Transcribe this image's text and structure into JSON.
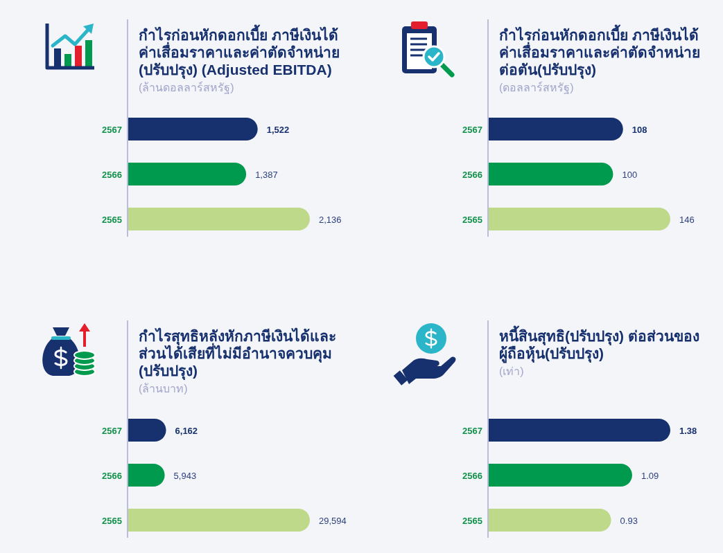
{
  "chart_data": [
    {
      "type": "bar",
      "orientation": "horizontal",
      "title": "กำไรก่อนหักดอกเบี้ย ภาษีเงินได้\nค่าเสื่อมราคาและค่าตัดจำหน่าย\n(ปรับปรุง) (Adjusted EBITDA)",
      "subtitle": "(ล้านดอลลาร์สหรัฐ)",
      "categories": [
        "2567",
        "2566",
        "2565"
      ],
      "values": [
        1522,
        1387,
        2136
      ],
      "value_labels": [
        "1,522",
        "1,387",
        "2,136"
      ],
      "colors": [
        "#17306e",
        "#009a4e",
        "#bfd98a"
      ]
    },
    {
      "type": "bar",
      "orientation": "horizontal",
      "title": "กำไรก่อนหักดอกเบี้ย ภาษีเงินได้\nค่าเสื่อมราคาและค่าตัดจำหน่าย\nต่อตัน(ปรับปรุง)",
      "subtitle": "(ดอลลาร์สหรัฐ)",
      "categories": [
        "2567",
        "2566",
        "2565"
      ],
      "values": [
        108,
        100,
        146
      ],
      "value_labels": [
        "108",
        "100",
        "146"
      ],
      "colors": [
        "#17306e",
        "#009a4e",
        "#bfd98a"
      ]
    },
    {
      "type": "bar",
      "orientation": "horizontal",
      "title": "กำไรสุทธิหลังหักภาษีเงินได้และ\nส่วนได้เสียที่ไม่มีอำนาจควบคุม\n(ปรับปรุง)",
      "subtitle": "(ล้านบาท)",
      "categories": [
        "2567",
        "2566",
        "2565"
      ],
      "values": [
        6162,
        5943,
        29594
      ],
      "value_labels": [
        "6,162",
        "5,943",
        "29,594"
      ],
      "colors": [
        "#17306e",
        "#009a4e",
        "#bfd98a"
      ]
    },
    {
      "type": "bar",
      "orientation": "horizontal",
      "title": "หนี้สินสุทธิ(ปรับปรุง) ต่อส่วนของ\nผู้ถือหุ้น(ปรับปรุง)",
      "subtitle": "(เท่า)",
      "categories": [
        "2567",
        "2566",
        "2565"
      ],
      "values": [
        1.38,
        1.09,
        0.93
      ],
      "value_labels": [
        "1.38",
        "1.09",
        "0.93"
      ],
      "colors": [
        "#17306e",
        "#009a4e",
        "#bfd98a"
      ]
    }
  ]
}
